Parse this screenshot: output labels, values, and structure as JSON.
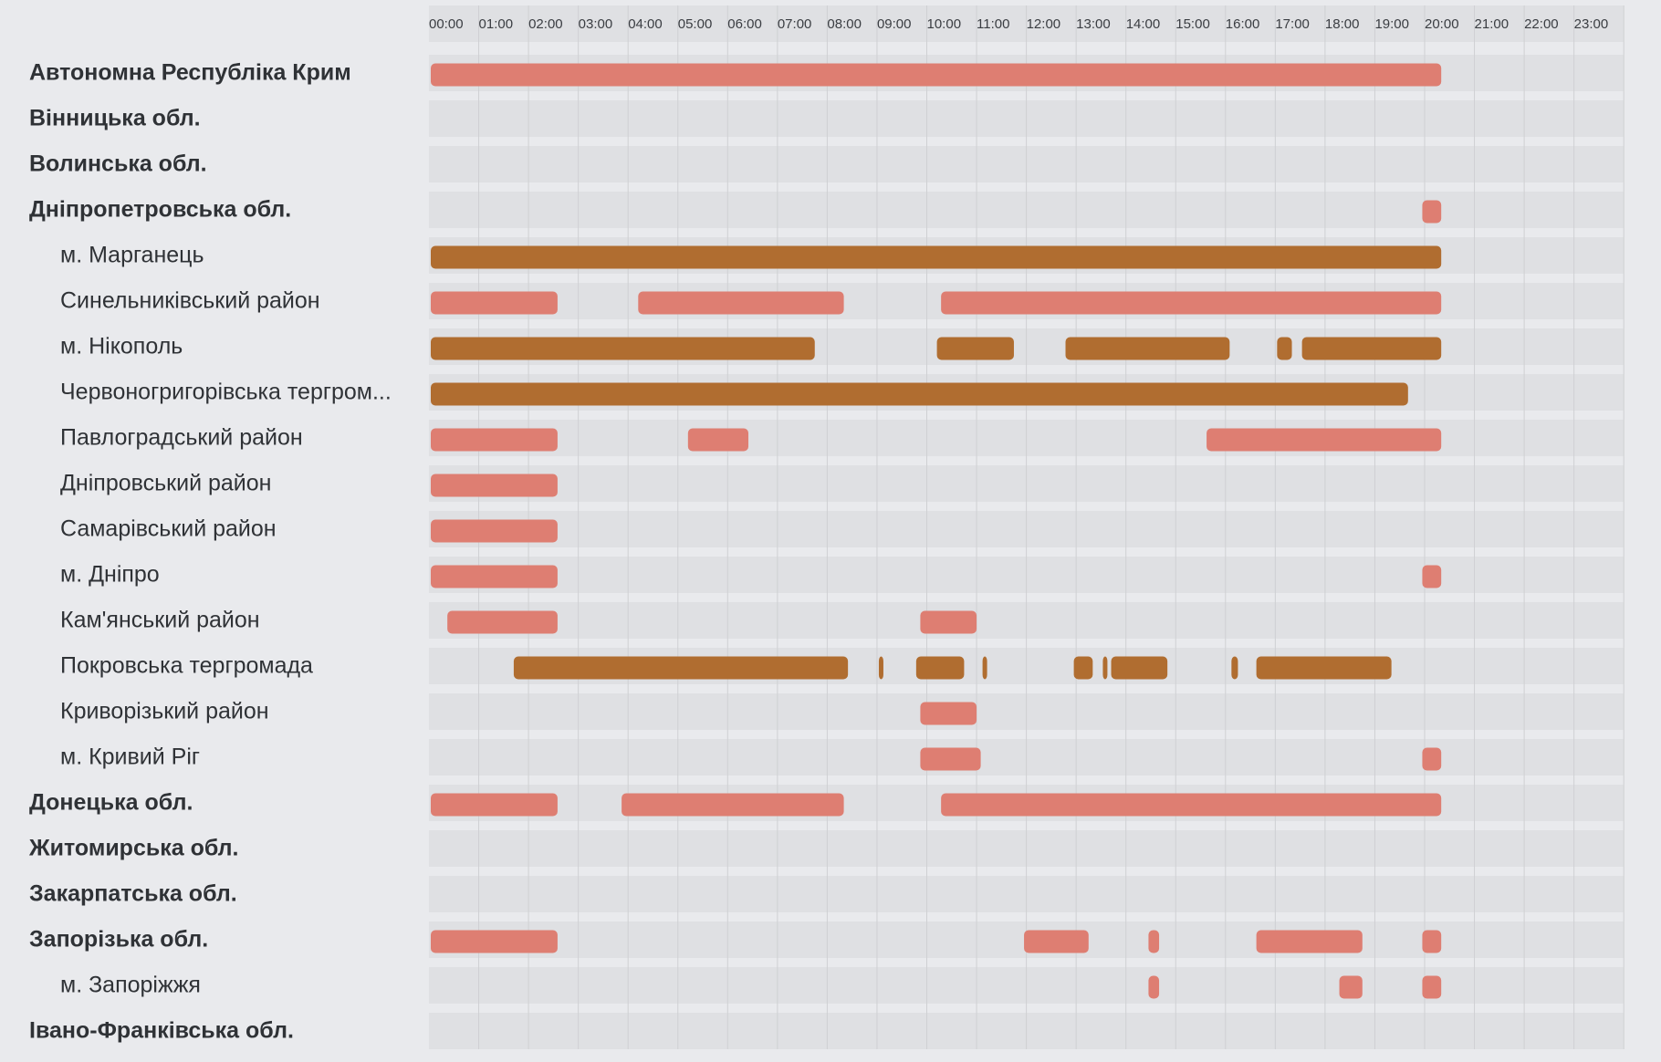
{
  "colors": {
    "background": "#e9eaed",
    "track": "#dfe0e3",
    "gridline": "#cfd0d3",
    "air_alert": "#de7e72",
    "artillery_alert": "#b06d30",
    "label_text": "#2f3236"
  },
  "chart_data": {
    "type": "timeline",
    "x_axis": {
      "ticks": [
        "00:00",
        "01:00",
        "02:00",
        "03:00",
        "04:00",
        "05:00",
        "06:00",
        "07:00",
        "08:00",
        "09:00",
        "10:00",
        "11:00",
        "12:00",
        "13:00",
        "14:00",
        "15:00",
        "16:00",
        "17:00",
        "18:00",
        "19:00",
        "20:00",
        "21:00",
        "22:00",
        "23:00"
      ],
      "range_hours": [
        0,
        24
      ]
    },
    "grid": true,
    "rows": [
      {
        "label": "Автономна Республіка Крим",
        "level": 0,
        "intervals": [
          {
            "start": "00:00",
            "end": "20:20",
            "color": "air_alert"
          }
        ]
      },
      {
        "label": "Вінницька обл.",
        "level": 0,
        "intervals": []
      },
      {
        "label": "Волинська обл.",
        "level": 0,
        "intervals": []
      },
      {
        "label": "Дніпропетровська обл.",
        "level": 0,
        "intervals": [
          {
            "start": "19:55",
            "end": "20:20",
            "color": "air_alert"
          }
        ]
      },
      {
        "label": "м. Марганець",
        "level": 1,
        "intervals": [
          {
            "start": "00:00",
            "end": "20:20",
            "color": "artillery_alert"
          }
        ]
      },
      {
        "label": "Синельниківський район",
        "level": 1,
        "intervals": [
          {
            "start": "00:00",
            "end": "02:35",
            "color": "air_alert"
          },
          {
            "start": "04:10",
            "end": "08:20",
            "color": "air_alert"
          },
          {
            "start": "10:15",
            "end": "20:20",
            "color": "air_alert"
          }
        ]
      },
      {
        "label": "м. Нікополь",
        "level": 1,
        "intervals": [
          {
            "start": "00:00",
            "end": "07:45",
            "color": "artillery_alert"
          },
          {
            "start": "10:10",
            "end": "11:45",
            "color": "artillery_alert"
          },
          {
            "start": "12:45",
            "end": "16:05",
            "color": "artillery_alert"
          },
          {
            "start": "17:00",
            "end": "17:20",
            "color": "artillery_alert"
          },
          {
            "start": "17:30",
            "end": "20:20",
            "color": "artillery_alert"
          }
        ]
      },
      {
        "label": "Червоногригорівська тергром...",
        "level": 1,
        "intervals": [
          {
            "start": "00:00",
            "end": "19:40",
            "color": "artillery_alert"
          }
        ]
      },
      {
        "label": "Павлоградський район",
        "level": 1,
        "intervals": [
          {
            "start": "00:00",
            "end": "02:35",
            "color": "air_alert"
          },
          {
            "start": "05:10",
            "end": "06:25",
            "color": "air_alert"
          },
          {
            "start": "15:35",
            "end": "20:20",
            "color": "air_alert"
          }
        ]
      },
      {
        "label": "Дніпровський район",
        "level": 1,
        "intervals": [
          {
            "start": "00:00",
            "end": "02:35",
            "color": "air_alert"
          }
        ]
      },
      {
        "label": "Самарівський район",
        "level": 1,
        "intervals": [
          {
            "start": "00:00",
            "end": "02:35",
            "color": "air_alert"
          }
        ]
      },
      {
        "label": "м. Дніпро",
        "level": 1,
        "intervals": [
          {
            "start": "00:00",
            "end": "02:35",
            "color": "air_alert"
          },
          {
            "start": "19:55",
            "end": "20:20",
            "color": "air_alert"
          }
        ]
      },
      {
        "label": "Кам'янський район",
        "level": 1,
        "intervals": [
          {
            "start": "00:20",
            "end": "02:35",
            "color": "air_alert"
          },
          {
            "start": "09:50",
            "end": "11:00",
            "color": "air_alert"
          }
        ]
      },
      {
        "label": "Покровська тергромада",
        "level": 1,
        "intervals": [
          {
            "start": "01:40",
            "end": "08:25",
            "color": "artillery_alert"
          },
          {
            "start": "09:00",
            "end": "09:05",
            "color": "artillery_alert"
          },
          {
            "start": "09:45",
            "end": "10:45",
            "color": "artillery_alert"
          },
          {
            "start": "11:05",
            "end": "11:10",
            "color": "artillery_alert"
          },
          {
            "start": "12:55",
            "end": "13:20",
            "color": "artillery_alert"
          },
          {
            "start": "13:30",
            "end": "13:33",
            "color": "artillery_alert"
          },
          {
            "start": "13:40",
            "end": "14:50",
            "color": "artillery_alert"
          },
          {
            "start": "16:05",
            "end": "16:15",
            "color": "artillery_alert"
          },
          {
            "start": "16:35",
            "end": "19:20",
            "color": "artillery_alert"
          }
        ]
      },
      {
        "label": "Криворізький район",
        "level": 1,
        "intervals": [
          {
            "start": "09:50",
            "end": "11:00",
            "color": "air_alert"
          }
        ]
      },
      {
        "label": "м. Кривий Ріг",
        "level": 1,
        "intervals": [
          {
            "start": "09:50",
            "end": "11:05",
            "color": "air_alert"
          },
          {
            "start": "19:55",
            "end": "20:20",
            "color": "air_alert"
          }
        ]
      },
      {
        "label": "Донецька обл.",
        "level": 0,
        "intervals": [
          {
            "start": "00:00",
            "end": "02:35",
            "color": "air_alert"
          },
          {
            "start": "03:50",
            "end": "08:20",
            "color": "air_alert"
          },
          {
            "start": "10:15",
            "end": "20:20",
            "color": "air_alert"
          }
        ]
      },
      {
        "label": "Житомирська обл.",
        "level": 0,
        "intervals": []
      },
      {
        "label": "Закарпатська обл.",
        "level": 0,
        "intervals": []
      },
      {
        "label": "Запорізька обл.",
        "level": 0,
        "intervals": [
          {
            "start": "00:00",
            "end": "02:35",
            "color": "air_alert"
          },
          {
            "start": "11:55",
            "end": "13:15",
            "color": "air_alert"
          },
          {
            "start": "14:25",
            "end": "14:40",
            "color": "air_alert"
          },
          {
            "start": "16:35",
            "end": "18:45",
            "color": "air_alert"
          },
          {
            "start": "19:55",
            "end": "20:20",
            "color": "air_alert"
          }
        ]
      },
      {
        "label": "м. Запоріжжя",
        "level": 1,
        "intervals": [
          {
            "start": "14:25",
            "end": "14:40",
            "color": "air_alert"
          },
          {
            "start": "18:15",
            "end": "18:45",
            "color": "air_alert"
          },
          {
            "start": "19:55",
            "end": "20:20",
            "color": "air_alert"
          }
        ]
      },
      {
        "label": "Івано-Франківська обл.",
        "level": 0,
        "intervals": []
      }
    ]
  }
}
